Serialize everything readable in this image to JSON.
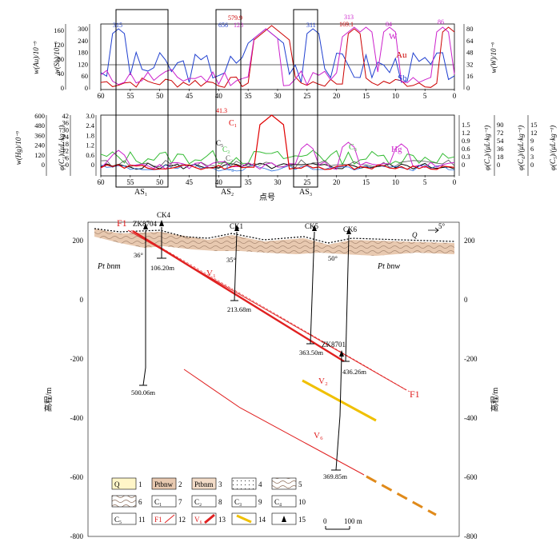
{
  "colors": {
    "au": "#cc0000",
    "sb": "#1f3fcf",
    "w": "#cc22cc",
    "c1": "#e00000",
    "c2": "#555555",
    "c3": "#33bb33",
    "c4": "#2a6fdb",
    "c5": "#000000",
    "fault": "#e02020",
    "ore_red": "#e02020",
    "ore_yellow": "#f0c000",
    "strata_fill": "#e8c9b0"
  },
  "top_panel": {
    "left_axis_labels": [
      "w(Au)/10⁻⁹",
      "w(Sb)/10⁻⁶"
    ],
    "right_axis_label": "w(W)/10⁻⁶",
    "au_ticks": [
      "160",
      "120",
      "80",
      "40",
      "0"
    ],
    "sb_ticks": [
      "300",
      "240",
      "180",
      "120",
      "60",
      "0"
    ],
    "w_ticks": [
      "80",
      "64",
      "48",
      "32",
      "16",
      "0"
    ],
    "series_labels": {
      "w": "W",
      "au": "Au",
      "sb": "Sb"
    },
    "peak_labels": [
      {
        "text": "315",
        "color": "sb"
      },
      {
        "text": "656",
        "color": "sb"
      },
      {
        "text": "579.9",
        "color": "au"
      },
      {
        "text": "128",
        "color": "w"
      },
      {
        "text": "311",
        "color": "sb"
      },
      {
        "text": "313",
        "color": "w"
      },
      {
        "text": "169.1",
        "color": "au"
      },
      {
        "text": "84",
        "color": "w"
      },
      {
        "text": "86",
        "color": "w"
      }
    ]
  },
  "bottom_panel": {
    "left_axis_labels": [
      "w(Hg)/10⁻⁹",
      "φ(C₁)/(μL·kg⁻¹)"
    ],
    "right_axis_labels": [
      "φ(C₃)/(μL·kg⁻¹)",
      "φ(C₄)/(μL·kg⁻¹)",
      "φ(C₅)/(μL·kg⁻¹)"
    ],
    "hg_ticks": [
      "600",
      "480",
      "360",
      "240",
      "120",
      "0"
    ],
    "c1_ticks": [
      "42",
      "36",
      "30",
      "24",
      "18",
      "12",
      "6",
      "0"
    ],
    "c2_ticks": [
      "3.0",
      "2.4",
      "1.8",
      "1.2",
      "0.6",
      "0"
    ],
    "c3_ticks": [
      "1.5",
      "1.2",
      "0.9",
      "0.6",
      "0.3",
      "0"
    ],
    "c4_ticks": [
      "90",
      "72",
      "54",
      "36",
      "18",
      "0"
    ],
    "c5_ticks": [
      "15",
      "12",
      "9",
      "6",
      "3",
      "0"
    ],
    "series_labels": {
      "c1": "C₁",
      "c2": "C₂",
      "c3": "C₃",
      "c4": "C₄",
      "c5": "C₅",
      "hg": "Hg"
    },
    "c1_peak": "41.3",
    "anomaly_labels": [
      "AS₁",
      "AS₂",
      "AS₃"
    ],
    "x_title": "点号"
  },
  "x_ticks": [
    "60",
    "55",
    "50",
    "45",
    "40",
    "35",
    "30",
    "25",
    "20",
    "15",
    "10",
    "5",
    "0"
  ],
  "section": {
    "y_axis_label": "高程/m",
    "y_ticks": [
      "200",
      "0",
      "-200",
      "-400",
      "-600",
      "-800"
    ],
    "faults": [
      "F1",
      "F1"
    ],
    "boreholes": [
      {
        "name": "ZK8704",
        "depth": "500.06m"
      },
      {
        "name": "CK4",
        "depth": "106.20m"
      },
      {
        "name": "CK1",
        "depth": "213.68m"
      },
      {
        "name": "CK5",
        "depth": "363.50m"
      },
      {
        "name": "CK6",
        "depth": "436.26m"
      },
      {
        "name": "ZK8701",
        "depth": "369.85m"
      }
    ],
    "orebodies": [
      "V₁",
      "V₂",
      "V₆"
    ],
    "units": [
      "Pt bnm",
      "Pt bnw",
      "Q"
    ],
    "dips": [
      "36°",
      "35°",
      "50°",
      "5°"
    ]
  },
  "legend": {
    "items": [
      {
        "num": "1",
        "sym": "Q"
      },
      {
        "num": "2",
        "sym": "Ptbnw"
      },
      {
        "num": "3",
        "sym": "Ptbnm"
      },
      {
        "num": "4",
        "sym": ""
      },
      {
        "num": "5",
        "sym": ""
      },
      {
        "num": "6",
        "sym": ""
      },
      {
        "num": "7",
        "sym": "C₁"
      },
      {
        "num": "8",
        "sym": "C₂"
      },
      {
        "num": "9",
        "sym": "C₃"
      },
      {
        "num": "10",
        "sym": "C₄"
      },
      {
        "num": "11",
        "sym": "C₅"
      },
      {
        "num": "12",
        "sym": "F1"
      },
      {
        "num": "13",
        "sym": "V₆"
      },
      {
        "num": "14",
        "sym": ""
      },
      {
        "num": "15",
        "sym": ""
      }
    ],
    "scale_zero": "0",
    "scale_label": "100 m"
  }
}
